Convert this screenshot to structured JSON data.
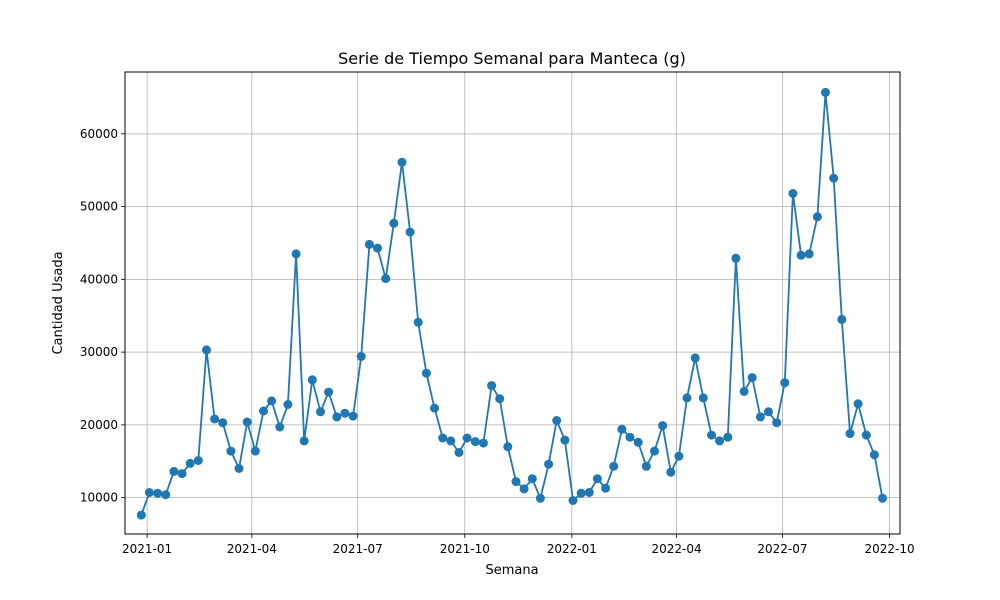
{
  "chart_data": {
    "type": "line",
    "title": "Serie de Tiempo Semanal para Manteca (g)",
    "xlabel": "Semana",
    "ylabel": "Cantidad Usada",
    "x_tick_labels": [
      "2021-01",
      "2021-04",
      "2021-07",
      "2021-10",
      "2022-01",
      "2022-04",
      "2022-07",
      "2022-10"
    ],
    "x_tick_dates": [
      "2021-01-01",
      "2021-04-01",
      "2021-07-01",
      "2021-10-01",
      "2022-01-01",
      "2022-04-01",
      "2022-07-01",
      "2022-10-01"
    ],
    "y_ticks": [
      10000,
      20000,
      30000,
      40000,
      50000,
      60000
    ],
    "y_tick_labels": [
      "10000",
      "20000",
      "30000",
      "40000",
      "50000",
      "60000"
    ],
    "ylim": [
      5000,
      68500
    ],
    "xlim": [
      "2020-12-13",
      "2022-10-10"
    ],
    "grid": true,
    "markers": true,
    "color": "#1f77b4",
    "x": [
      "2020-12-27",
      "2021-01-03",
      "2021-01-10",
      "2021-01-17",
      "2021-01-24",
      "2021-01-31",
      "2021-02-07",
      "2021-02-14",
      "2021-02-21",
      "2021-02-28",
      "2021-03-07",
      "2021-03-14",
      "2021-03-21",
      "2021-03-28",
      "2021-04-04",
      "2021-04-11",
      "2021-04-18",
      "2021-04-25",
      "2021-05-02",
      "2021-05-09",
      "2021-05-16",
      "2021-05-23",
      "2021-05-30",
      "2021-06-06",
      "2021-06-13",
      "2021-06-20",
      "2021-06-27",
      "2021-07-04",
      "2021-07-11",
      "2021-07-18",
      "2021-07-25",
      "2021-08-01",
      "2021-08-08",
      "2021-08-15",
      "2021-08-22",
      "2021-08-29",
      "2021-09-05",
      "2021-09-12",
      "2021-09-19",
      "2021-09-26",
      "2021-10-03",
      "2021-10-10",
      "2021-10-17",
      "2021-10-24",
      "2021-10-31",
      "2021-11-07",
      "2021-11-14",
      "2021-11-21",
      "2021-11-28",
      "2021-12-05",
      "2021-12-12",
      "2021-12-19",
      "2021-12-26",
      "2022-01-02",
      "2022-01-09",
      "2022-01-16",
      "2022-01-23",
      "2022-01-30",
      "2022-02-06",
      "2022-02-13",
      "2022-02-20",
      "2022-02-27",
      "2022-03-06",
      "2022-03-13",
      "2022-03-20",
      "2022-03-27",
      "2022-04-03",
      "2022-04-10",
      "2022-04-17",
      "2022-04-24",
      "2022-05-01",
      "2022-05-08",
      "2022-05-15",
      "2022-05-22",
      "2022-05-29",
      "2022-06-05",
      "2022-06-12",
      "2022-06-19",
      "2022-06-26",
      "2022-07-03",
      "2022-07-10",
      "2022-07-17",
      "2022-07-24",
      "2022-07-31",
      "2022-08-07",
      "2022-08-14",
      "2022-08-21",
      "2022-08-28",
      "2022-09-04",
      "2022-09-11",
      "2022-09-18",
      "2022-09-25"
    ],
    "y": [
      7600,
      10700,
      10600,
      10400,
      13600,
      13300,
      14700,
      15100,
      30300,
      20800,
      20300,
      16400,
      14000,
      20400,
      16400,
      21900,
      23300,
      19700,
      22800,
      43500,
      17800,
      26200,
      21800,
      24500,
      21100,
      21600,
      21200,
      29400,
      44800,
      44300,
      40100,
      47700,
      56100,
      46500,
      34100,
      27100,
      22300,
      18200,
      17800,
      16200,
      18200,
      17700,
      17500,
      25400,
      23600,
      17000,
      12200,
      11200,
      12600,
      9900,
      14600,
      20600,
      17900,
      9600,
      10600,
      10700,
      12600,
      11300,
      14300,
      19400,
      18300,
      17600,
      14300,
      16400,
      19900,
      13500,
      15700,
      23700,
      29200,
      23700,
      18600,
      17800,
      18300,
      42900,
      24600,
      26500,
      21100,
      21800,
      20300,
      25800,
      51800,
      43300,
      43500,
      48600,
      65700,
      53900,
      34500,
      18800,
      22900,
      18600,
      15900,
      9900
    ]
  }
}
